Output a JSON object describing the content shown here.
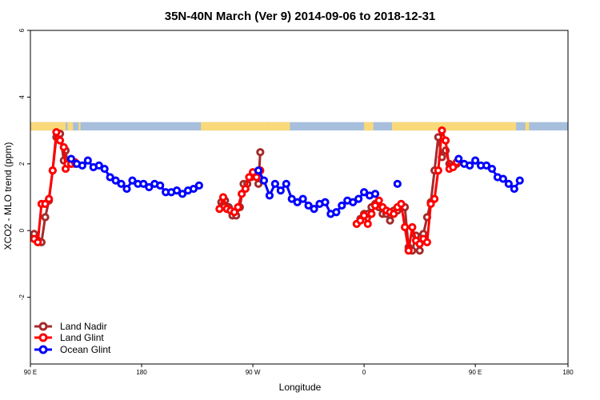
{
  "chart_data": {
    "type": "line",
    "title": "35N-40N March (Ver 9)   2014-09-06 to 2018-12-31",
    "xlabel": "Longitude",
    "ylabel": "XCO2 - MLO trend (ppm)",
    "xlim": [
      -90,
      200
    ],
    "ylim": [
      -4,
      6
    ],
    "xticks": [
      {
        "value": -90,
        "label": "90 E"
      },
      {
        "value": -30,
        "label": "180"
      },
      {
        "value": 30,
        "label": "90 W"
      },
      {
        "value": 90,
        "label": "0"
      },
      {
        "value": 150,
        "label": "90 E"
      },
      {
        "value": 210,
        "label": "180"
      }
    ],
    "yticks": [
      {
        "value": -2,
        "label": "-2"
      },
      {
        "value": 0,
        "label": "0"
      },
      {
        "value": 2,
        "label": "2"
      },
      {
        "value": 4,
        "label": "4"
      },
      {
        "value": 6,
        "label": "6"
      }
    ],
    "land_band": {
      "y_range": [
        3.0,
        3.25
      ],
      "ocean_color": "#a7bfdc",
      "land_color": "#f9d97a",
      "land_segments": [
        [
          -90,
          -71
        ],
        [
          -70,
          -67
        ],
        [
          -64,
          -63
        ],
        [
          2,
          38
        ],
        [
          38,
          50
        ],
        [
          90,
          95
        ],
        [
          105,
          172
        ],
        [
          177,
          179
        ]
      ]
    },
    "legend": {
      "position": "bottom-left"
    },
    "series": [
      {
        "name": "Land Nadir",
        "color": "#a52a2a",
        "points": [
          [
            -88,
            -0.1
          ],
          [
            -86,
            -0.3
          ],
          [
            -84,
            -0.35
          ],
          [
            -82,
            0.4
          ],
          [
            -80,
            0.9
          ],
          [
            -78,
            1.8
          ],
          [
            -76,
            2.8
          ],
          [
            -74,
            2.9
          ],
          [
            -72,
            2.1
          ],
          [
            -71,
            2.4
          ],
          [
            -70,
            2.0
          ],
          [
            -68,
            2.0
          ],
          [
            -66,
            2.0
          ],
          [
            13,
            0.85
          ],
          [
            15,
            0.9
          ],
          [
            17,
            0.7
          ],
          [
            19,
            0.45
          ],
          [
            21,
            0.45
          ],
          [
            23,
            0.7
          ],
          [
            25,
            1.4
          ],
          [
            27,
            1.4
          ],
          [
            29,
            1.6
          ],
          [
            31,
            1.7
          ],
          [
            33,
            1.4
          ],
          [
            34,
            2.35
          ],
          [
            88,
            0.35
          ],
          [
            90,
            0.5
          ],
          [
            92,
            0.5
          ],
          [
            94,
            0.7
          ],
          [
            96,
            0.8
          ],
          [
            98,
            0.7
          ],
          [
            100,
            0.5
          ],
          [
            102,
            0.5
          ],
          [
            104,
            0.3
          ],
          [
            106,
            0.6
          ],
          [
            108,
            0.6
          ],
          [
            110,
            0.75
          ],
          [
            112,
            0.7
          ],
          [
            114,
            -0.5
          ],
          [
            116,
            -0.6
          ],
          [
            118,
            -0.15
          ],
          [
            120,
            -0.6
          ],
          [
            122,
            -0.1
          ],
          [
            124,
            0.4
          ],
          [
            126,
            0.85
          ],
          [
            128,
            1.8
          ],
          [
            130,
            2.8
          ],
          [
            132,
            2.2
          ],
          [
            134,
            2.4
          ],
          [
            136,
            2.0
          ],
          [
            138,
            1.95
          ],
          [
            140,
            2.0
          ]
        ]
      },
      {
        "name": "Land Glint",
        "color": "#ff0000",
        "points": [
          [
            -88,
            -0.25
          ],
          [
            -86,
            -0.35
          ],
          [
            -84,
            0.8
          ],
          [
            -82,
            0.8
          ],
          [
            -80,
            0.95
          ],
          [
            -78,
            1.8
          ],
          [
            -76,
            2.95
          ],
          [
            -74,
            2.7
          ],
          [
            -72,
            2.5
          ],
          [
            -71,
            1.85
          ],
          [
            -70,
            2.0
          ],
          [
            -68,
            2.0
          ],
          [
            -66,
            2.05
          ],
          [
            12,
            0.65
          ],
          [
            14,
            1.0
          ],
          [
            16,
            0.65
          ],
          [
            18,
            0.6
          ],
          [
            20,
            0.55
          ],
          [
            22,
            0.7
          ],
          [
            24,
            1.1
          ],
          [
            26,
            1.25
          ],
          [
            28,
            1.6
          ],
          [
            30,
            1.75
          ],
          [
            32,
            1.6
          ],
          [
            34,
            1.8
          ],
          [
            86,
            0.2
          ],
          [
            88,
            0.3
          ],
          [
            90,
            0.45
          ],
          [
            92,
            0.2
          ],
          [
            94,
            0.5
          ],
          [
            96,
            0.75
          ],
          [
            98,
            0.9
          ],
          [
            100,
            0.7
          ],
          [
            102,
            0.6
          ],
          [
            104,
            0.55
          ],
          [
            106,
            0.5
          ],
          [
            108,
            0.7
          ],
          [
            110,
            0.8
          ],
          [
            112,
            0.1
          ],
          [
            114,
            -0.6
          ],
          [
            116,
            0.1
          ],
          [
            118,
            -0.3
          ],
          [
            120,
            -0.4
          ],
          [
            122,
            -0.25
          ],
          [
            124,
            -0.35
          ],
          [
            126,
            0.8
          ],
          [
            128,
            0.95
          ],
          [
            130,
            1.8
          ],
          [
            132,
            3.0
          ],
          [
            134,
            2.7
          ],
          [
            136,
            1.85
          ],
          [
            138,
            1.9
          ],
          [
            140,
            2.05
          ]
        ]
      },
      {
        "name": "Ocean Glint",
        "color": "#0000ff",
        "points": [
          [
            -68,
            2.15
          ],
          [
            -65,
            2.0
          ],
          [
            -62,
            1.95
          ],
          [
            -59,
            2.1
          ],
          [
            -56,
            1.9
          ],
          [
            -53,
            1.95
          ],
          [
            -50,
            1.85
          ],
          [
            -47,
            1.6
          ],
          [
            -44,
            1.5
          ],
          [
            -41,
            1.4
          ],
          [
            -38,
            1.25
          ],
          [
            -35,
            1.5
          ],
          [
            -32,
            1.4
          ],
          [
            -29,
            1.4
          ],
          [
            -26,
            1.3
          ],
          [
            -23,
            1.4
          ],
          [
            -20,
            1.35
          ],
          [
            -17,
            1.15
          ],
          [
            -14,
            1.15
          ],
          [
            -11,
            1.2
          ],
          [
            -8,
            1.1
          ],
          [
            -5,
            1.2
          ],
          [
            -2,
            1.25
          ],
          [
            1,
            1.35
          ],
          [
            33,
            1.8
          ],
          [
            36,
            1.5
          ],
          [
            39,
            1.05
          ],
          [
            42,
            1.4
          ],
          [
            45,
            1.2
          ],
          [
            48,
            1.4
          ],
          [
            51,
            0.95
          ],
          [
            54,
            0.85
          ],
          [
            57,
            0.95
          ],
          [
            60,
            0.75
          ],
          [
            63,
            0.65
          ],
          [
            66,
            0.8
          ],
          [
            69,
            0.85
          ],
          [
            72,
            0.5
          ],
          [
            75,
            0.55
          ],
          [
            78,
            0.75
          ],
          [
            81,
            0.9
          ],
          [
            84,
            0.85
          ],
          [
            87,
            0.95
          ],
          [
            90,
            1.15
          ],
          [
            93,
            1.05
          ],
          [
            96,
            1.1
          ],
          [
            108,
            1.4
          ],
          [
            141,
            2.15
          ],
          [
            144,
            2.0
          ],
          [
            147,
            1.95
          ],
          [
            150,
            2.1
          ],
          [
            153,
            1.95
          ],
          [
            156,
            1.95
          ],
          [
            159,
            1.85
          ],
          [
            162,
            1.6
          ],
          [
            165,
            1.55
          ],
          [
            168,
            1.4
          ],
          [
            171,
            1.25
          ],
          [
            174,
            1.5
          ]
        ]
      }
    ]
  }
}
